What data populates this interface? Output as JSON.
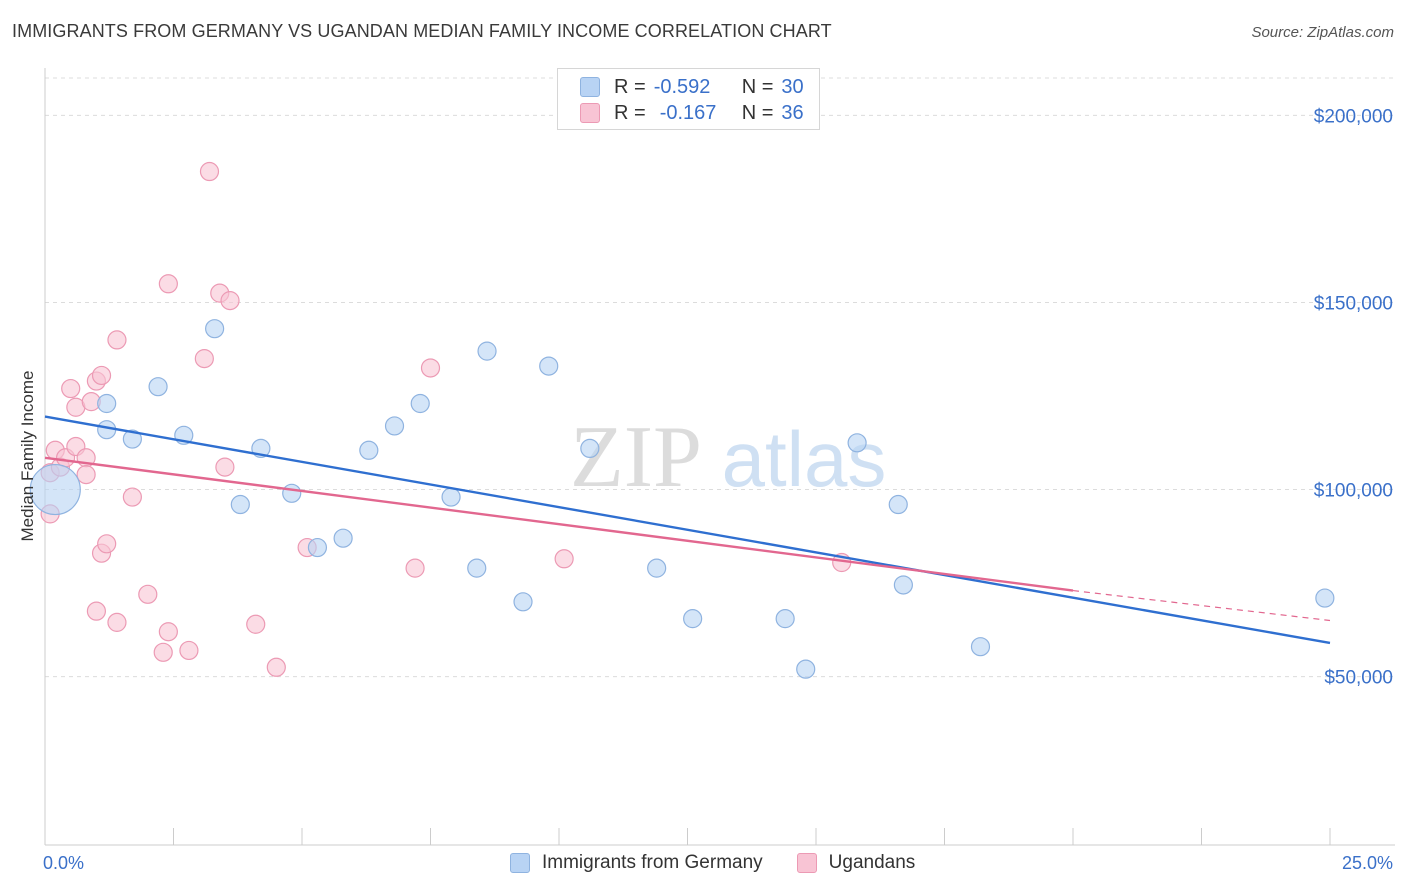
{
  "title": "IMMIGRANTS FROM GERMANY VS UGANDAN MEDIAN FAMILY INCOME CORRELATION CHART",
  "source": "Source: ZipAtlas.com",
  "watermark": {
    "zip": "ZIP",
    "atlas": "atlas"
  },
  "legend": {
    "series1": {
      "r_label": "R =",
      "r_value": "-0.592",
      "n_label": "N =",
      "n_value": "30"
    },
    "series2": {
      "r_label": "R =",
      "r_value": "-0.167",
      "n_label": "N =",
      "n_value": "36"
    }
  },
  "colors": {
    "blue_fill": "#b8d3f4",
    "blue_stroke": "#8fb3e0",
    "blue_line": "#2f6fd0",
    "pink_fill": "#f8c4d4",
    "pink_stroke": "#ec9ab4",
    "pink_line": "#e2678f",
    "axis_text": "#3a70c9"
  },
  "chart_data": {
    "type": "scatter",
    "title": "IMMIGRANTS FROM GERMANY VS UGANDAN MEDIAN FAMILY INCOME CORRELATION CHART",
    "xlabel": "",
    "ylabel": "Median Family Income",
    "xlim": [
      0,
      25
    ],
    "ylim": [
      5000,
      210000
    ],
    "x_tick_labels": [
      "0.0%",
      "25.0%"
    ],
    "y_ticks": [
      50000,
      100000,
      150000,
      200000
    ],
    "y_tick_labels": [
      "$50,000",
      "$100,000",
      "$150,000",
      "$200,000"
    ],
    "series": [
      {
        "name": "Immigrants from Germany",
        "color": "blue",
        "r": -0.592,
        "n": 30,
        "points": [
          [
            0.2,
            100000,
            "large"
          ],
          [
            1.2,
            123000
          ],
          [
            1.2,
            116000
          ],
          [
            1.7,
            113500
          ],
          [
            2.2,
            127500
          ],
          [
            2.7,
            114500
          ],
          [
            3.3,
            143000
          ],
          [
            3.8,
            96000
          ],
          [
            4.2,
            111000
          ],
          [
            4.8,
            99000
          ],
          [
            5.3,
            84500
          ],
          [
            5.8,
            87000
          ],
          [
            6.3,
            110500
          ],
          [
            6.8,
            117000
          ],
          [
            7.3,
            123000
          ],
          [
            7.9,
            98000
          ],
          [
            8.4,
            79000
          ],
          [
            8.6,
            137000
          ],
          [
            9.3,
            70000
          ],
          [
            9.8,
            133000
          ],
          [
            10.6,
            111000
          ],
          [
            11.9,
            79000
          ],
          [
            12.6,
            65500
          ],
          [
            14.4,
            65500
          ],
          [
            14.8,
            52000
          ],
          [
            15.8,
            112500
          ],
          [
            16.6,
            96000
          ],
          [
            16.7,
            74500
          ],
          [
            18.2,
            58000
          ],
          [
            24.9,
            71000
          ]
        ],
        "trend": {
          "x0": 0,
          "y0": 119500,
          "x1": 25,
          "y1": 59000,
          "dashed_to": null
        }
      },
      {
        "name": "Ugandans",
        "color": "pink",
        "r": -0.167,
        "n": 36,
        "points": [
          [
            0.1,
            104500
          ],
          [
            0.1,
            93500
          ],
          [
            0.2,
            110500
          ],
          [
            0.3,
            106000
          ],
          [
            0.4,
            108500
          ],
          [
            0.5,
            127000
          ],
          [
            0.6,
            122000
          ],
          [
            0.6,
            111500
          ],
          [
            0.8,
            108500
          ],
          [
            0.8,
            104000
          ],
          [
            0.9,
            123500
          ],
          [
            1.0,
            67500
          ],
          [
            1.0,
            129000
          ],
          [
            1.1,
            83000
          ],
          [
            1.1,
            130500
          ],
          [
            1.2,
            85500
          ],
          [
            1.4,
            64500
          ],
          [
            1.4,
            140000
          ],
          [
            1.7,
            98000
          ],
          [
            2.0,
            72000
          ],
          [
            2.3,
            56500
          ],
          [
            2.4,
            62000
          ],
          [
            2.4,
            155000
          ],
          [
            2.8,
            57000
          ],
          [
            3.1,
            135000
          ],
          [
            3.2,
            185000
          ],
          [
            3.4,
            152500
          ],
          [
            3.5,
            106000
          ],
          [
            3.6,
            150500
          ],
          [
            4.1,
            64000
          ],
          [
            4.5,
            52500
          ],
          [
            5.1,
            84500
          ],
          [
            7.2,
            79000
          ],
          [
            7.5,
            132500
          ],
          [
            10.1,
            81500
          ],
          [
            15.5,
            80500
          ]
        ],
        "trend": {
          "x0": 0,
          "y0": 108500,
          "x1": 20,
          "y1": 73000,
          "dashed_to": {
            "x": 25,
            "y": 65000
          }
        }
      }
    ]
  },
  "bottom_legend": {
    "series1": "Immigrants from Germany",
    "series2": "Ugandans"
  }
}
